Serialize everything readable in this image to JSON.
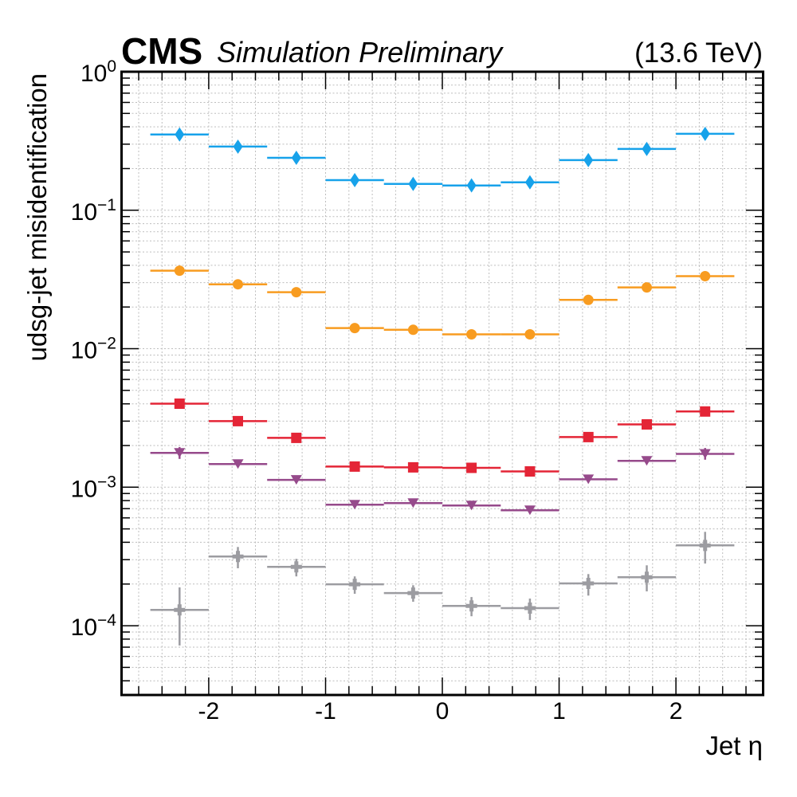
{
  "header": {
    "experiment": "CMS",
    "subtitle": "Simulation Preliminary",
    "energy": "(13.6 TeV)"
  },
  "chart_data": {
    "type": "scatter",
    "title": "",
    "xlabel": "Jet η",
    "ylabel": "udsg-jet misidentification",
    "xlim": [
      -2.75,
      2.75
    ],
    "ylim": [
      3.16e-05,
      1.0
    ],
    "yscale": "log",
    "grid": true,
    "x_ticks": [
      -2,
      -1,
      0,
      1,
      2
    ],
    "x_tick_labels": [
      "-2",
      "-1",
      "0",
      "1",
      "2"
    ],
    "y_ticks": [
      1.0,
      0.1,
      0.01,
      0.001,
      0.0001
    ],
    "y_tick_labels": [
      {
        "base": "10",
        "exp": "0"
      },
      {
        "base": "10",
        "exp": "−1"
      },
      {
        "base": "10",
        "exp": "−2"
      },
      {
        "base": "10",
        "exp": "−3"
      },
      {
        "base": "10",
        "exp": "−4"
      }
    ],
    "bin_edges": [
      -2.5,
      -2.0,
      -1.5,
      -1.0,
      -0.5,
      0.0,
      0.5,
      1.0,
      1.5,
      2.0,
      2.5
    ],
    "x": [
      -2.25,
      -1.75,
      -1.25,
      -0.75,
      -0.25,
      0.25,
      0.75,
      1.25,
      1.75,
      2.25
    ],
    "series": [
      {
        "name": "series-diamond",
        "marker": "diamond",
        "color": "#17a2ea",
        "values": [
          0.352,
          0.288,
          0.239,
          0.165,
          0.155,
          0.151,
          0.159,
          0.23,
          0.277,
          0.356
        ]
      },
      {
        "name": "series-circle",
        "marker": "circle",
        "color": "#f89c20",
        "values": [
          0.0366,
          0.0292,
          0.0256,
          0.0141,
          0.0137,
          0.0127,
          0.0127,
          0.0225,
          0.0277,
          0.0334
        ]
      },
      {
        "name": "series-square",
        "marker": "square",
        "color": "#e42536",
        "values": [
          0.00401,
          0.003,
          0.00227,
          0.00141,
          0.00139,
          0.00138,
          0.0013,
          0.0023,
          0.00284,
          0.00352
        ]
      },
      {
        "name": "series-triangle",
        "marker": "triangle-down",
        "color": "#964a8b",
        "values": [
          0.00177,
          0.00147,
          0.00113,
          0.000748,
          0.000768,
          0.000738,
          0.000681,
          0.00114,
          0.00155,
          0.00174
        ],
        "err_low": [
          0.0016,
          0.00147,
          0.00113,
          0.000748,
          0.000768,
          0.000738,
          0.000681,
          0.00114,
          0.0015,
          0.00158
        ],
        "err_high": [
          0.00195,
          0.00147,
          0.00113,
          0.000748,
          0.000768,
          0.000738,
          0.000681,
          0.00114,
          0.0016,
          0.00192
        ]
      },
      {
        "name": "series-cross",
        "marker": "plus",
        "color": "#9c9ca1",
        "values": [
          0.00013,
          0.000316,
          0.000266,
          0.000199,
          0.000172,
          0.000139,
          0.000134,
          0.000202,
          0.000224,
          0.00038
        ],
        "err_low": [
          7.2e-05,
          0.00026,
          0.000227,
          0.00017,
          0.000149,
          0.000117,
          0.00011,
          0.000165,
          0.000177,
          0.000281
        ],
        "err_high": [
          0.000189,
          0.00037,
          0.000304,
          0.000227,
          0.000196,
          0.000161,
          0.000157,
          0.000236,
          0.000273,
          0.000476
        ]
      }
    ]
  }
}
